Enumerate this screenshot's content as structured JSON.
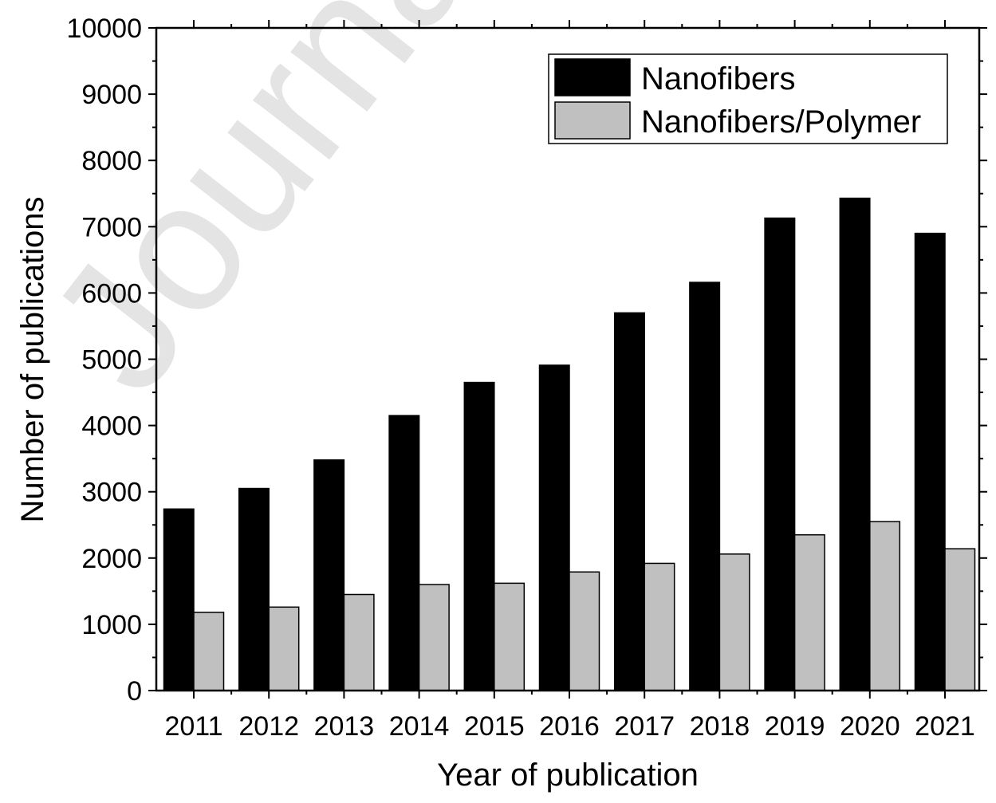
{
  "watermark": "Journal Pre-proof",
  "chart_data": {
    "type": "bar",
    "title": "",
    "xlabel": "Year of publication",
    "ylabel": "Number of publications",
    "ylim": [
      0,
      10000
    ],
    "yticks": [
      0,
      1000,
      2000,
      3000,
      4000,
      5000,
      6000,
      7000,
      8000,
      9000,
      10000
    ],
    "categories": [
      "2011",
      "2012",
      "2013",
      "2014",
      "2015",
      "2016",
      "2017",
      "2018",
      "2019",
      "2020",
      "2021"
    ],
    "series": [
      {
        "name": "Nanofibers",
        "color": "#000000",
        "values": [
          2740,
          3050,
          3480,
          4150,
          4650,
          4910,
          5700,
          6160,
          7130,
          7430,
          6900
        ]
      },
      {
        "name": "Nanofibers/Polymer",
        "color": "#c0c0c0",
        "values": [
          1180,
          1260,
          1450,
          1600,
          1620,
          1790,
          1920,
          2060,
          2350,
          2550,
          2140
        ]
      }
    ],
    "grid": false,
    "legend": "top-right"
  }
}
